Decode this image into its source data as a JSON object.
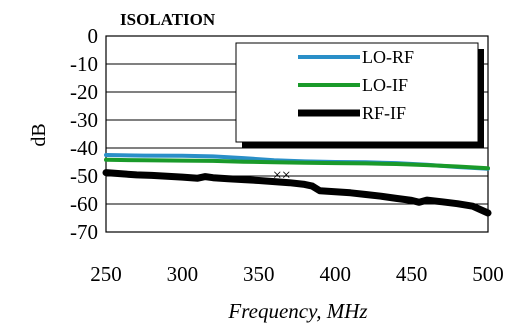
{
  "chart_data": {
    "type": "line",
    "title": "ISOLATION",
    "xlabel": "Frequency,  MHz",
    "ylabel": "dB",
    "xlim": [
      250,
      500
    ],
    "ylim": [
      -70,
      0
    ],
    "xticks": [
      250,
      300,
      350,
      400,
      450,
      500
    ],
    "xtick_labels": [
      "250",
      "300",
      "350",
      "400",
      "450",
      "500"
    ],
    "yticks": [
      0,
      -10,
      -20,
      -30,
      -40,
      -50,
      -60,
      -70
    ],
    "ytick_labels": [
      "0",
      "-10",
      "-20",
      "-30",
      "-40",
      "-50",
      "-60",
      "-70"
    ],
    "grid": "horizontal",
    "legend_position": "top-right",
    "annotation": "××",
    "annotation_at": [
      365,
      -50
    ],
    "series": [
      {
        "name": "LO-RF",
        "color": "#2a8fc8",
        "x": [
          250,
          275,
          300,
          320,
          340,
          360,
          380,
          400,
          420,
          440,
          460,
          480,
          500
        ],
        "y": [
          -42.5,
          -42.7,
          -42.8,
          -43.0,
          -43.6,
          -44.4,
          -44.8,
          -45.0,
          -45.1,
          -45.4,
          -46.0,
          -46.8,
          -47.4
        ]
      },
      {
        "name": "LO-IF",
        "color": "#1a9a2a",
        "x": [
          250,
          275,
          300,
          320,
          340,
          360,
          380,
          400,
          420,
          440,
          460,
          480,
          500
        ],
        "y": [
          -44.2,
          -44.4,
          -44.5,
          -44.6,
          -44.9,
          -45.1,
          -45.3,
          -45.4,
          -45.5,
          -45.7,
          -46.1,
          -46.6,
          -47.2
        ]
      },
      {
        "name": "RF-IF",
        "color": "#000000",
        "x": [
          250,
          260,
          270,
          280,
          290,
          300,
          310,
          315,
          320,
          330,
          340,
          350,
          360,
          370,
          380,
          385,
          390,
          400,
          410,
          420,
          430,
          440,
          450,
          455,
          460,
          470,
          480,
          490,
          500
        ],
        "y": [
          -48.8,
          -49.2,
          -49.6,
          -49.8,
          -50.1,
          -50.4,
          -50.8,
          -50.2,
          -50.6,
          -51.0,
          -51.3,
          -51.6,
          -52.0,
          -52.4,
          -53.0,
          -53.6,
          -55.3,
          -55.6,
          -56.0,
          -56.6,
          -57.2,
          -58.0,
          -58.7,
          -59.4,
          -58.6,
          -59.2,
          -59.9,
          -60.8,
          -63.2
        ]
      }
    ]
  }
}
